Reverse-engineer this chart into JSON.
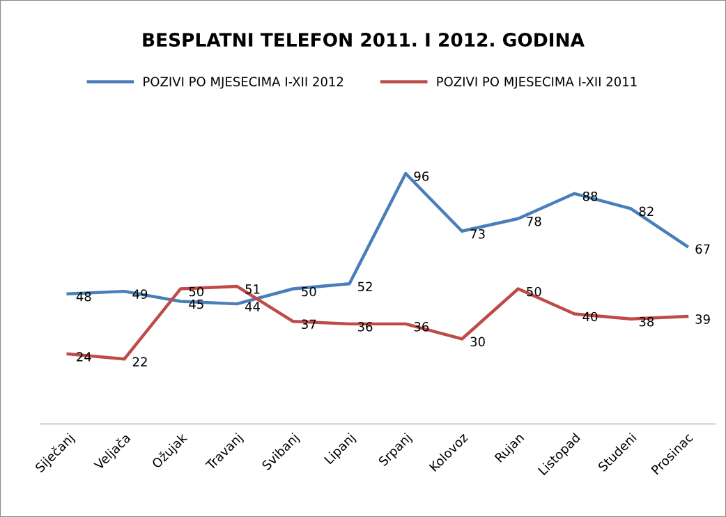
{
  "chart_data": {
    "type": "line",
    "title": "BESPLATNI TELEFON 2011. I 2012. GODINA",
    "categories": [
      "Siječanj",
      "Veljača",
      "Ožujak",
      "Travanj",
      "Svibanj",
      "Lipanj",
      "Srpanj",
      "Kolovoz",
      "Rujan",
      "Listopad",
      "Studeni",
      "Prosinac"
    ],
    "series": [
      {
        "name": "POZIVI PO MJESECIMA I-XII 2012",
        "color": "#4a7ebb",
        "values": [
          48,
          49,
          45,
          44,
          50,
          52,
          96,
          73,
          78,
          88,
          82,
          67
        ]
      },
      {
        "name": "POZIVI PO MJESECIMA I-XII 2011",
        "color": "#be4b48",
        "values": [
          24,
          22,
          50,
          51,
          37,
          36,
          36,
          30,
          50,
          40,
          38,
          39
        ]
      }
    ],
    "tick_labels": "x",
    "data_labels": true,
    "legend": "top",
    "grid": false,
    "marker": "none",
    "line_style": "solid"
  }
}
